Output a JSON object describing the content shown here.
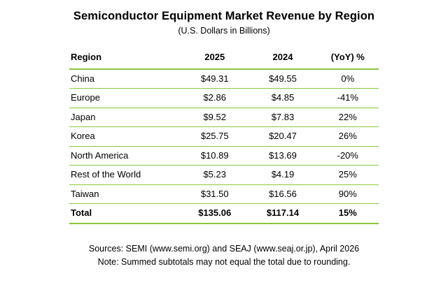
{
  "title": "Semiconductor Equipment Market Revenue by Region",
  "subtitle": "(U.S. Dollars in Billions)",
  "colors": {
    "line_green": "#8dc63f"
  },
  "table": {
    "columns": [
      "Region",
      "2025",
      "2024",
      "(YoY) %"
    ],
    "rows": [
      {
        "region": "China",
        "y2025": "$49.31",
        "y2024": "$49.55",
        "yoy": "0%",
        "bold": false
      },
      {
        "region": "Europe",
        "y2025": "$2.86",
        "y2024": "$4.85",
        "yoy": "-41%",
        "bold": false
      },
      {
        "region": "Japan",
        "y2025": "$9.52",
        "y2024": "$7.83",
        "yoy": "22%",
        "bold": false
      },
      {
        "region": "Korea",
        "y2025": "$25.75",
        "y2024": "$20.47",
        "yoy": "26%",
        "bold": false
      },
      {
        "region": "North America",
        "y2025": "$10.89",
        "y2024": "$13.69",
        "yoy": "-20%",
        "bold": false
      },
      {
        "region": "Rest of the World",
        "y2025": "$5.23",
        "y2024": "$4.19",
        "yoy": "25%",
        "bold": false
      },
      {
        "region": "Taiwan",
        "y2025": "$31.50",
        "y2024": "$16.56",
        "yoy": "90%",
        "bold": false
      },
      {
        "region": "Total",
        "y2025": "$135.06",
        "y2024": "$117.14",
        "yoy": "15%",
        "bold": true
      }
    ]
  },
  "footer": {
    "sources": "Sources: SEMI (www.semi.org) and SEAJ (www.seaj.or.jp), April 2026",
    "note": "Note: Summed subtotals may not equal the total due to rounding."
  },
  "chart_data": {
    "type": "table",
    "title": "Semiconductor Equipment Market Revenue by Region",
    "subtitle": "(U.S. Dollars in Billions)",
    "columns": [
      "Region",
      "2025",
      "2024",
      "(YoY) %"
    ],
    "units": "U.S. Dollars in Billions",
    "rows": [
      {
        "region": "China",
        "2025": 49.31,
        "2024": 49.55,
        "yoy_pct": 0
      },
      {
        "region": "Europe",
        "2025": 2.86,
        "2024": 4.85,
        "yoy_pct": -41
      },
      {
        "region": "Japan",
        "2025": 9.52,
        "2024": 7.83,
        "yoy_pct": 22
      },
      {
        "region": "Korea",
        "2025": 25.75,
        "2024": 20.47,
        "yoy_pct": 26
      },
      {
        "region": "North America",
        "2025": 10.89,
        "2024": 13.69,
        "yoy_pct": -20
      },
      {
        "region": "Rest of the World",
        "2025": 5.23,
        "2024": 4.19,
        "yoy_pct": 25
      },
      {
        "region": "Taiwan",
        "2025": 31.5,
        "2024": 16.56,
        "yoy_pct": 90
      },
      {
        "region": "Total",
        "2025": 135.06,
        "2024": 117.14,
        "yoy_pct": 15
      }
    ],
    "notes": [
      "Sources: SEMI (www.semi.org) and SEAJ (www.seaj.or.jp), April 2026",
      "Note: Summed subtotals may not equal the total due to rounding."
    ]
  }
}
